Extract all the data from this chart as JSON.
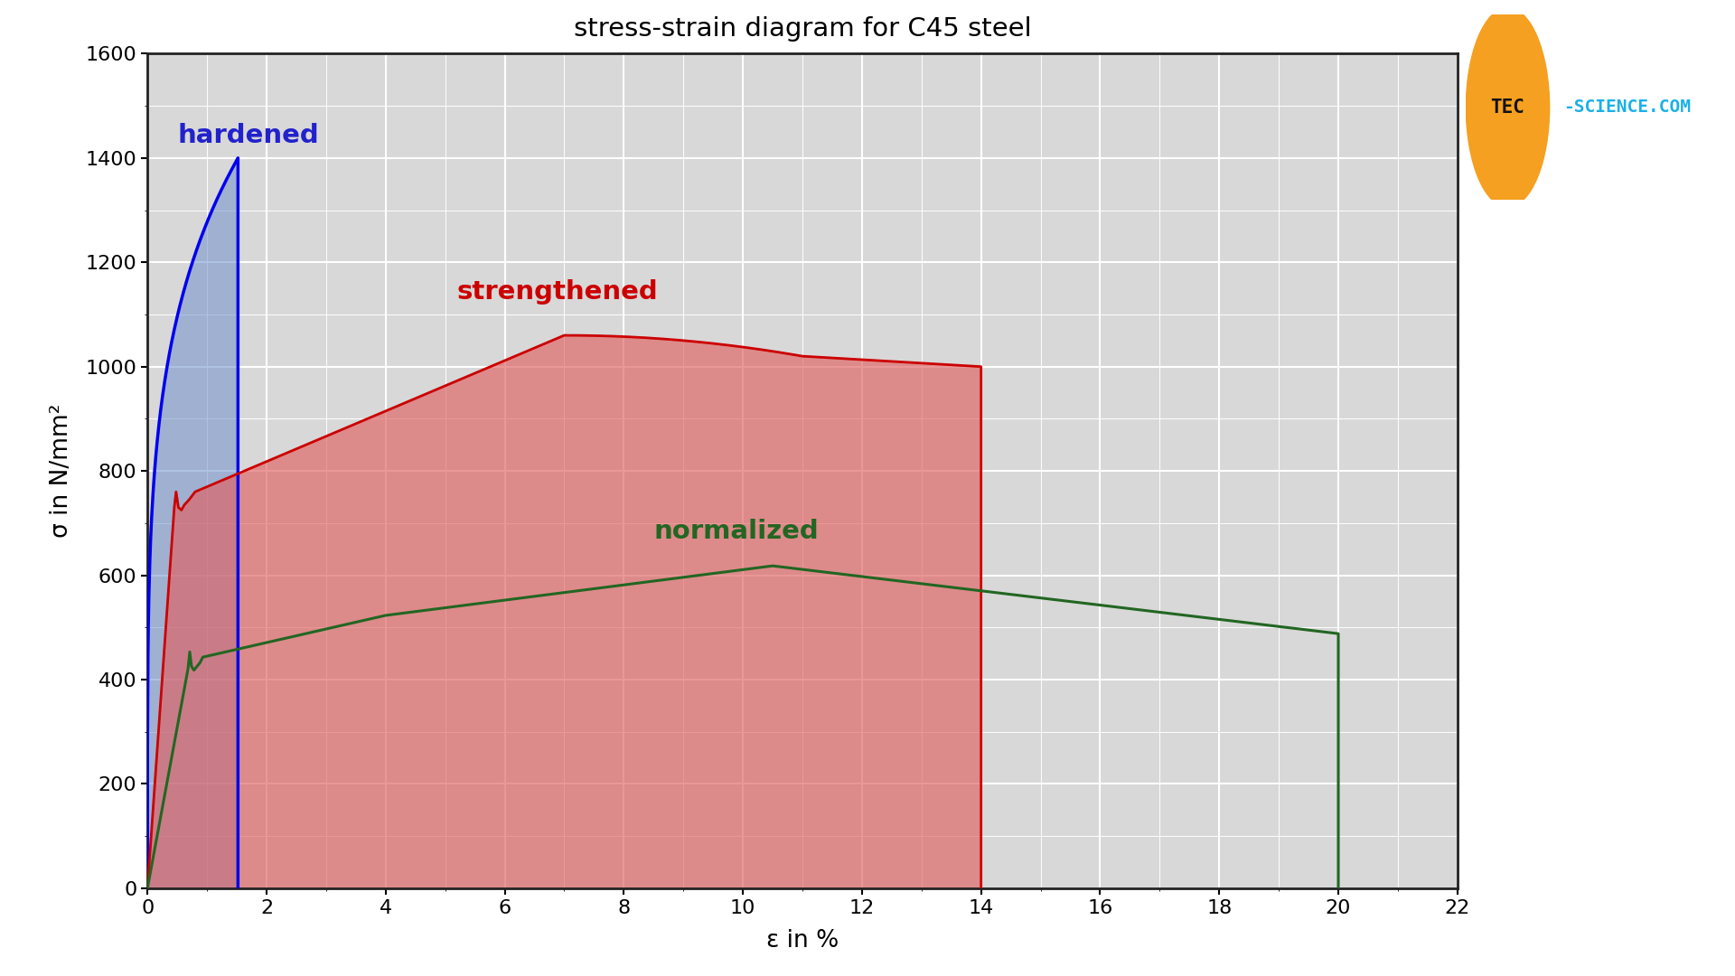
{
  "title": "stress-strain diagram for C45 steel",
  "xlabel": "ε in %",
  "ylabel": "σ in N/mm²",
  "xlim": [
    0,
    22
  ],
  "ylim": [
    0,
    1600
  ],
  "xticks": [
    0,
    2,
    4,
    6,
    8,
    10,
    12,
    14,
    16,
    18,
    20,
    22
  ],
  "yticks": [
    0,
    200,
    400,
    600,
    800,
    1000,
    1200,
    1400,
    1600
  ],
  "bg_color": "#d8d8d8",
  "grid_color": "#ffffff",
  "hardened_line_color": "#0000ee",
  "hardened_fill_color": "#7090cc",
  "hardened_fill_alpha": 0.55,
  "tempered_line_color": "#cc0000",
  "tempered_fill_color": "#e06060",
  "tempered_fill_alpha": 0.65,
  "normalized_line_color": "#226622",
  "label_hardened": "hardened",
  "label_tempered": "strengthened",
  "label_normalized": "normalized",
  "label_hardened_color": "#2222cc",
  "label_tempered_color": "#cc0000",
  "label_normalized_color": "#226622",
  "logo_orange": "#F5A020",
  "logo_blue": "#1ab0e8",
  "logo_dark": "#111111"
}
